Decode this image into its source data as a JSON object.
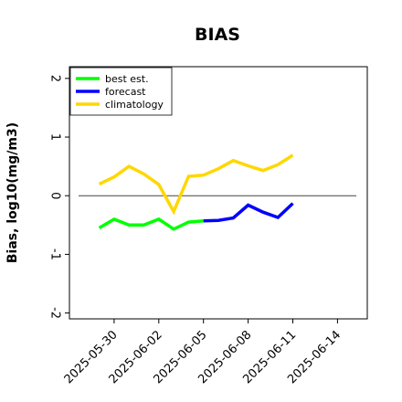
{
  "chart_data": {
    "type": "line",
    "title": "BIAS",
    "xlabel": "",
    "ylabel": "Bias, log10(mg/m3)",
    "ylim": [
      -2.1,
      2.2
    ],
    "xlim": [
      "2025-05-27",
      "2025-06-16"
    ],
    "yticks": [
      -2,
      -1,
      0,
      1,
      2
    ],
    "ytick_labels": [
      "-2",
      "-1",
      "0",
      "1",
      "2"
    ],
    "xticks": [
      "2025-05-30",
      "2025-06-02",
      "2025-06-05",
      "2025-06-08",
      "2025-06-11",
      "2025-06-14"
    ],
    "highlighted_xtick": "2025-06-05",
    "highlight_color": "#228B22",
    "grid": false,
    "reference_line": 0,
    "legend": {
      "position": "top-left",
      "entries": [
        "best est.",
        "forecast",
        "climatology"
      ]
    },
    "series": [
      {
        "name": "best est.",
        "color": "#00ff00",
        "x": [
          "2025-05-29",
          "2025-05-30",
          "2025-05-31",
          "2025-06-01",
          "2025-06-02",
          "2025-06-03",
          "2025-06-04",
          "2025-06-05"
        ],
        "values": [
          -0.55,
          -0.4,
          -0.5,
          -0.5,
          -0.4,
          -0.57,
          -0.45,
          -0.43
        ]
      },
      {
        "name": "forecast",
        "color": "#0000ff",
        "x": [
          "2025-06-05",
          "2025-06-06",
          "2025-06-07",
          "2025-06-08",
          "2025-06-09",
          "2025-06-10",
          "2025-06-11"
        ],
        "values": [
          -0.43,
          -0.42,
          -0.38,
          -0.16,
          -0.28,
          -0.37,
          -0.13
        ]
      },
      {
        "name": "climatology",
        "color": "#ffd700",
        "x": [
          "2025-05-29",
          "2025-05-30",
          "2025-05-31",
          "2025-06-01",
          "2025-06-02",
          "2025-06-03",
          "2025-06-04",
          "2025-06-05",
          "2025-06-06",
          "2025-06-07",
          "2025-06-08",
          "2025-06-09",
          "2025-06-10",
          "2025-06-11"
        ],
        "values": [
          0.2,
          0.32,
          0.5,
          0.37,
          0.19,
          -0.27,
          0.33,
          0.35,
          0.46,
          0.6,
          0.51,
          0.43,
          0.53,
          0.69
        ]
      }
    ]
  }
}
